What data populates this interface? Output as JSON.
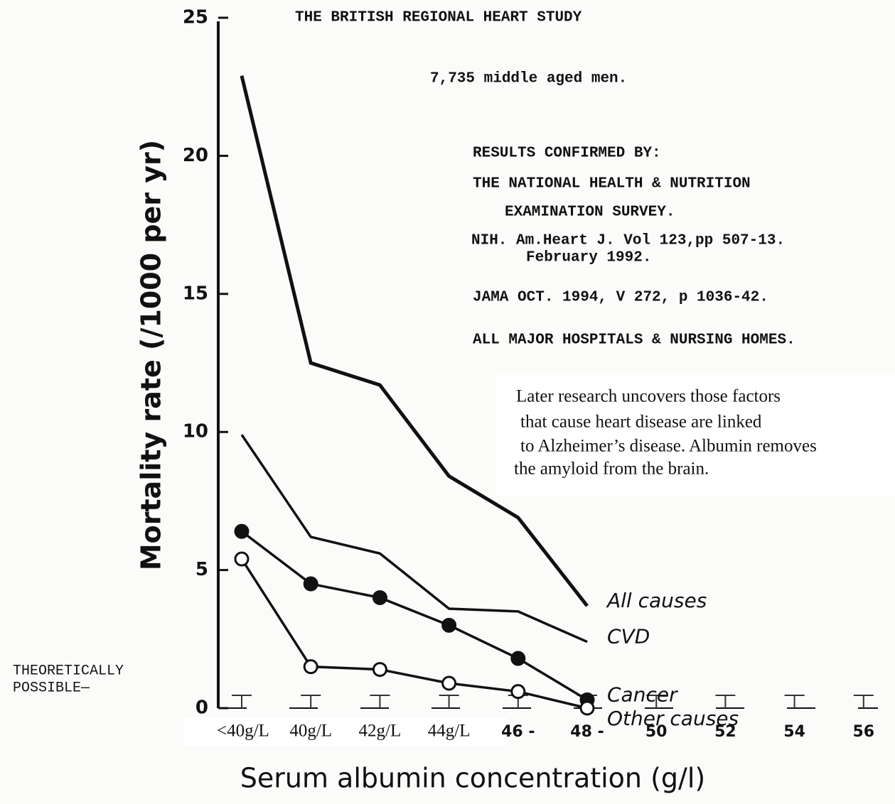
{
  "chart_data": {
    "type": "line",
    "title": "THE BRITISH REGIONAL HEART STUDY",
    "subtitle": "7,735 middle aged men.",
    "notes": [
      "RESULTS CONFIRMED BY:",
      "THE NATIONAL HEALTH & NUTRITION",
      "EXAMINATION SURVEY.",
      "NIH. Am.Heart J. Vol 123,pp 507-13.",
      "February 1992.",
      "JAMA OCT. 1994, V 272, p 1036-42.",
      "ALL MAJOR HOSPITALS & NURSING HOMES."
    ],
    "note_box": [
      "Later research uncovers those factors",
      "that cause heart disease are linked",
      "to Alzheimer’s disease. Albumin removes",
      "the amyloid from the brain."
    ],
    "side_label": [
      "THEORETICALLY",
      "POSSIBLE—"
    ],
    "y_label": "Mortality rate (/1000 per yr)",
    "x_label": "Serum albumin concentration (g/l)",
    "categories": [
      "<40g/L",
      "40g/L",
      "42g/L",
      "44g/L",
      "46 -",
      "48 -",
      "50",
      "52",
      "54",
      "56"
    ],
    "ylim": [
      0,
      25
    ],
    "yticks": [
      0,
      5,
      10,
      15,
      20,
      25
    ],
    "series": [
      {
        "name": "All causes",
        "color": "#111111",
        "marker": "none",
        "values": [
          22.9,
          12.5,
          11.7,
          8.4,
          6.9,
          3.7,
          null,
          null,
          null,
          null
        ]
      },
      {
        "name": "CVD",
        "color": "#111111",
        "marker": "none",
        "values": [
          9.9,
          6.2,
          5.6,
          3.6,
          3.5,
          2.4,
          null,
          null,
          null,
          null
        ]
      },
      {
        "name": "Cancer",
        "color": "#111111",
        "marker": "filled",
        "values": [
          6.4,
          4.5,
          4.0,
          3.0,
          1.8,
          0.3,
          null,
          null,
          null,
          null
        ]
      },
      {
        "name": "Other causes",
        "color": "#111111",
        "marker": "open",
        "values": [
          5.4,
          1.5,
          1.4,
          0.9,
          0.6,
          0.0,
          null,
          null,
          null,
          null
        ]
      }
    ]
  }
}
